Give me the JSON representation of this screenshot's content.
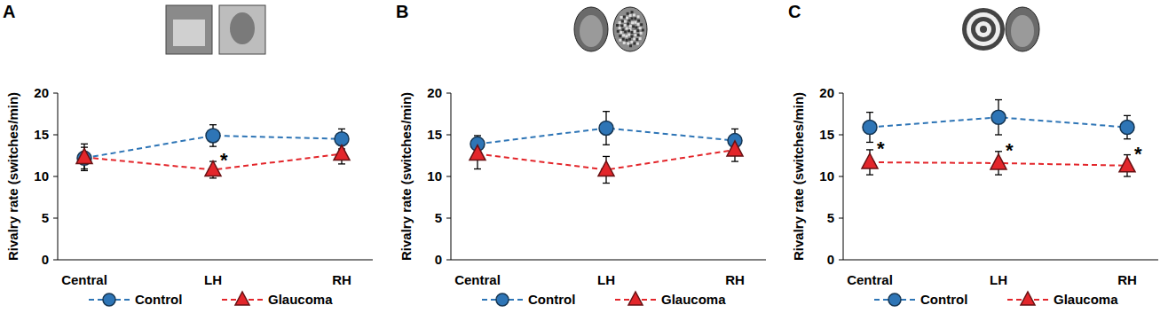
{
  "chart_data": [
    {
      "type": "line",
      "title": "A",
      "y_label": "Rivalry rate (switches/min)",
      "categories": [
        "Central",
        "LH",
        "RH"
      ],
      "ylim": [
        0,
        20
      ],
      "yticks": [
        0,
        5,
        10,
        15,
        20
      ],
      "legend": "bottom",
      "series": [
        {
          "name": "Control",
          "color": "#2e75b6",
          "marker": "circle",
          "line_style": "dashed",
          "values": [
            12.2,
            14.9,
            14.5
          ],
          "errors": [
            1.3,
            1.3,
            1.2
          ]
        },
        {
          "name": "Glaucoma",
          "color": "#e3262b",
          "marker": "triangle",
          "line_style": "dashed",
          "values": [
            12.3,
            10.8,
            12.7
          ],
          "errors": [
            1.6,
            1.0,
            1.2
          ]
        }
      ],
      "annotations": [
        {
          "text": "*",
          "series": "Glaucoma",
          "category": "LH"
        }
      ]
    },
    {
      "type": "line",
      "title": "B",
      "y_label": "Rivalry rate (switches/min)",
      "categories": [
        "Central",
        "LH",
        "RH"
      ],
      "ylim": [
        0,
        20
      ],
      "yticks": [
        0,
        5,
        10,
        15,
        20
      ],
      "legend": "bottom",
      "series": [
        {
          "name": "Control",
          "color": "#2e75b6",
          "marker": "circle",
          "line_style": "dashed",
          "values": [
            13.9,
            15.8,
            14.3
          ],
          "errors": [
            1.0,
            2.0,
            1.4
          ]
        },
        {
          "name": "Glaucoma",
          "color": "#e3262b",
          "marker": "triangle",
          "line_style": "dashed",
          "values": [
            12.7,
            10.8,
            13.2
          ],
          "errors": [
            1.8,
            1.6,
            1.4
          ]
        }
      ]
    },
    {
      "type": "line",
      "title": "C",
      "y_label": "Rivalry rate (switches/min)",
      "categories": [
        "Central",
        "LH",
        "RH"
      ],
      "ylim": [
        0,
        20
      ],
      "yticks": [
        0,
        5,
        10,
        15,
        20
      ],
      "legend": "bottom",
      "series": [
        {
          "name": "Control",
          "color": "#2e75b6",
          "marker": "circle",
          "line_style": "dashed",
          "values": [
            15.9,
            17.1,
            15.9
          ],
          "errors": [
            1.8,
            2.1,
            1.4
          ]
        },
        {
          "name": "Glaucoma",
          "color": "#e3262b",
          "marker": "triangle",
          "line_style": "dashed",
          "values": [
            11.7,
            11.6,
            11.3
          ],
          "errors": [
            1.5,
            1.4,
            1.3
          ]
        }
      ],
      "annotations": [
        {
          "text": "*",
          "series": "Glaucoma",
          "category": "Central"
        },
        {
          "text": "*",
          "series": "Glaucoma",
          "category": "LH"
        },
        {
          "text": "*",
          "series": "Glaucoma",
          "category": "RH"
        }
      ]
    }
  ]
}
